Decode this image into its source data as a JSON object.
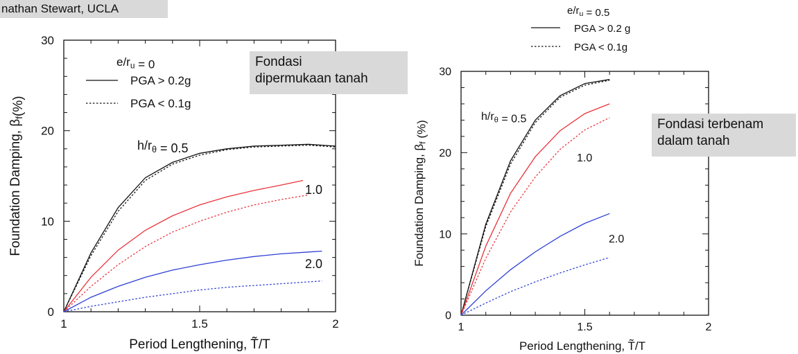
{
  "header": {
    "credit": "nathan Stewart, UCLA"
  },
  "notes": {
    "left": [
      "Fondasi",
      "dipermukaan tanah"
    ],
    "right": [
      "Fondasi terbenam",
      "dalam tanah"
    ]
  },
  "colors": {
    "black": "#111111",
    "red": "#e8333a",
    "blue": "#2e3fd6",
    "note_bg": "#d9d9d9"
  },
  "chart_data": [
    {
      "type": "line",
      "title": "",
      "xlabel": "Period Lengthening, T̃/T",
      "ylabel": "Foundation Damping, βf(%)",
      "xlim": [
        1,
        2
      ],
      "ylim": [
        0,
        30
      ],
      "xticks": [
        "1",
        "1.5",
        "2"
      ],
      "yticks": [
        "0",
        "10",
        "20",
        "30"
      ],
      "legend": {
        "header": "e/ru = 0",
        "entries": [
          {
            "style": "solid",
            "label": "PGA > 0.2g"
          },
          {
            "style": "dotted",
            "label": "PGA < 0.1g"
          }
        ]
      },
      "annotations": [
        "h/rθ = 0.5",
        "1.0",
        "2.0"
      ],
      "series": [
        {
          "h_r": "0.5",
          "pga": "> 0.2g",
          "color": "black",
          "dash": "solid",
          "x": [
            1,
            1.1,
            1.2,
            1.3,
            1.4,
            1.5,
            1.6,
            1.7,
            1.8,
            1.9,
            2.0
          ],
          "y": [
            0,
            6.5,
            11.5,
            14.8,
            16.5,
            17.5,
            18.0,
            18.3,
            18.4,
            18.5,
            18.3
          ]
        },
        {
          "h_r": "0.5",
          "pga": "< 0.1g",
          "color": "black",
          "dash": "dotted",
          "x": [
            1,
            1.1,
            1.2,
            1.3,
            1.4,
            1.5,
            1.6,
            1.7,
            1.8,
            1.9,
            2.0
          ],
          "y": [
            0,
            6.2,
            11.1,
            14.5,
            16.3,
            17.3,
            17.9,
            18.2,
            18.3,
            18.4,
            18.2
          ]
        },
        {
          "h_r": "1.0",
          "pga": "> 0.2g",
          "color": "red",
          "dash": "solid",
          "x": [
            1,
            1.1,
            1.2,
            1.3,
            1.4,
            1.5,
            1.6,
            1.7,
            1.8,
            1.88
          ],
          "y": [
            0,
            3.8,
            6.8,
            9.0,
            10.6,
            11.8,
            12.7,
            13.4,
            14.0,
            14.5
          ]
        },
        {
          "h_r": "1.0",
          "pga": "< 0.1g",
          "color": "red",
          "dash": "dotted",
          "x": [
            1,
            1.1,
            1.2,
            1.3,
            1.4,
            1.5,
            1.6,
            1.7,
            1.8,
            1.9
          ],
          "y": [
            0,
            2.8,
            5.2,
            7.2,
            8.8,
            10.0,
            11.0,
            11.8,
            12.4,
            12.9
          ]
        },
        {
          "h_r": "2.0",
          "pga": "> 0.2g",
          "color": "blue",
          "dash": "solid",
          "x": [
            1,
            1.1,
            1.2,
            1.3,
            1.4,
            1.5,
            1.6,
            1.7,
            1.8,
            1.9,
            1.95
          ],
          "y": [
            0,
            1.6,
            2.8,
            3.8,
            4.6,
            5.2,
            5.7,
            6.1,
            6.4,
            6.6,
            6.7
          ]
        },
        {
          "h_r": "2.0",
          "pga": "< 0.1g",
          "color": "blue",
          "dash": "dotted",
          "x": [
            1,
            1.1,
            1.2,
            1.3,
            1.4,
            1.5,
            1.6,
            1.7,
            1.8,
            1.9,
            1.95
          ],
          "y": [
            0,
            0.6,
            1.1,
            1.6,
            2.0,
            2.4,
            2.7,
            2.9,
            3.1,
            3.3,
            3.4
          ]
        }
      ]
    },
    {
      "type": "line",
      "title": "",
      "xlabel": "Period Lengthening, T̃/T",
      "ylabel": "Foundation Damping, βf (%)",
      "xlim": [
        1,
        2
      ],
      "ylim": [
        0,
        30
      ],
      "xticks": [
        "1",
        "1.5",
        "2"
      ],
      "yticks": [
        "0",
        "10",
        "20",
        "30"
      ],
      "legend": {
        "header": "e/ru = 0.5",
        "entries": [
          {
            "style": "solid",
            "label": "PGA > 0.2 g"
          },
          {
            "style": "dotted",
            "label": "PGA < 0.1g"
          }
        ]
      },
      "annotations": [
        "h/rθ = 0.5",
        "1.0",
        "2.0"
      ],
      "series": [
        {
          "h_r": "0.5",
          "pga": "> 0.2 g",
          "color": "black",
          "dash": "solid",
          "x": [
            1,
            1.1,
            1.2,
            1.3,
            1.4,
            1.5,
            1.6
          ],
          "y": [
            0,
            11.2,
            19.0,
            24.0,
            27.0,
            28.5,
            29.0
          ]
        },
        {
          "h_r": "0.5",
          "pga": "< 0.1g",
          "color": "black",
          "dash": "dotted",
          "x": [
            1,
            1.1,
            1.2,
            1.3,
            1.4,
            1.5,
            1.6
          ],
          "y": [
            0,
            10.9,
            18.6,
            23.7,
            26.8,
            28.3,
            28.9
          ]
        },
        {
          "h_r": "1.0",
          "pga": "> 0.2 g",
          "color": "red",
          "dash": "solid",
          "x": [
            1,
            1.1,
            1.2,
            1.3,
            1.4,
            1.5,
            1.6
          ],
          "y": [
            0,
            8.5,
            15.0,
            19.5,
            22.7,
            24.8,
            26.0
          ]
        },
        {
          "h_r": "1.0",
          "pga": "< 0.1g",
          "color": "red",
          "dash": "dotted",
          "x": [
            1,
            1.1,
            1.2,
            1.3,
            1.4,
            1.5,
            1.6
          ],
          "y": [
            0,
            7.0,
            12.7,
            17.0,
            20.4,
            22.8,
            24.3
          ]
        },
        {
          "h_r": "2.0",
          "pga": "> 0.2 g",
          "color": "blue",
          "dash": "solid",
          "x": [
            1,
            1.1,
            1.2,
            1.3,
            1.4,
            1.5,
            1.6
          ],
          "y": [
            0,
            3.0,
            5.6,
            7.8,
            9.7,
            11.3,
            12.5
          ]
        },
        {
          "h_r": "2.0",
          "pga": "< 0.1g",
          "color": "blue",
          "dash": "dotted",
          "x": [
            1,
            1.1,
            1.2,
            1.3,
            1.4,
            1.5,
            1.6
          ],
          "y": [
            0,
            1.5,
            2.9,
            4.1,
            5.2,
            6.2,
            7.1
          ]
        }
      ]
    }
  ]
}
